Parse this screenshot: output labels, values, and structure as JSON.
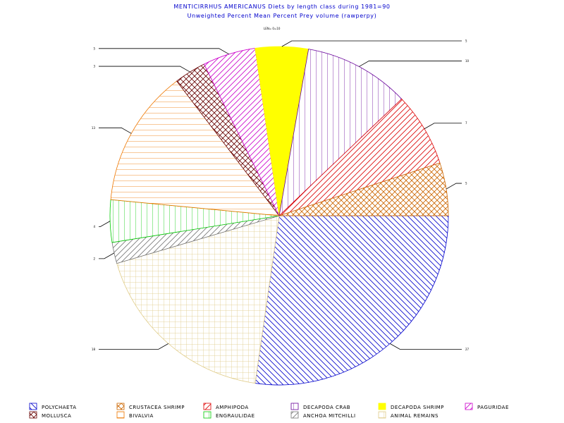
{
  "chart_data": {
    "type": "pie",
    "title": "MENTICIRRHUS AMERICANUS Diets by length class during 1981=90",
    "subtitle": "Unweighted Percent Mean Percent Prey  volume (rawperpy)",
    "group_label": "LEN=  0=10",
    "colors": {
      "polychaeta": "#0000cc",
      "crustacea_shrimp": "#cc6600",
      "amphipoda": "#dd0000",
      "decapoda_crab": "#660099",
      "decapoda_shrimp": "#ffff00",
      "paguridae": "#cc00cc",
      "mollusca": "#660000",
      "bivalvia": "#ee7700",
      "engraulidae": "#00cc00",
      "anchoa_mitchilli": "#777777",
      "animal_remains": "#e0cc88"
    },
    "slices": [
      {
        "name": "POLYCHAETA",
        "value": 27,
        "label": "27",
        "color": "#0000cc",
        "pattern": "diag-back"
      },
      {
        "name": "ANIMAL REMAINS",
        "value": 18,
        "label": "18",
        "color": "#e0cc88",
        "pattern": "grid"
      },
      {
        "name": "ANCHOA MITCHILLI",
        "value": 2,
        "label": "2",
        "color": "#777777",
        "pattern": "diag-fwd"
      },
      {
        "name": "ENGRAULIDAE",
        "value": 4,
        "label": "4",
        "color": "#00cc00",
        "pattern": "vert"
      },
      {
        "name": "BIVALVIA",
        "value": 13,
        "label": "13",
        "color": "#ee7700",
        "pattern": "horiz"
      },
      {
        "name": "MOLLUSCA",
        "value": 3,
        "label": "3",
        "color": "#660000",
        "pattern": "cross"
      },
      {
        "name": "PAGURIDAE",
        "value": 5,
        "label": "5",
        "color": "#cc00cc",
        "pattern": "diag-fwd"
      },
      {
        "name": "DECAPODA SHRIMP",
        "value": 5,
        "label": "5",
        "color": "#ffff00",
        "pattern": "solid"
      },
      {
        "name": "DECAPODA CRAB",
        "value": 10,
        "label": "10",
        "color": "#660099",
        "pattern": "vert"
      },
      {
        "name": "AMPHIPODA",
        "value": 7,
        "label": "7",
        "color": "#dd0000",
        "pattern": "diag-fwd"
      },
      {
        "name": "CRUSTACEA SHRIMP",
        "value": 5,
        "label": "5",
        "color": "#cc6600",
        "pattern": "cross"
      }
    ],
    "legend": [
      {
        "label": "POLYCHAETA",
        "color": "#0000cc",
        "pattern": "diag-back"
      },
      {
        "label": "CRUSTACEA SHRIMP",
        "color": "#cc6600",
        "pattern": "cross"
      },
      {
        "label": "AMPHIPODA",
        "color": "#dd0000",
        "pattern": "diag-fwd"
      },
      {
        "label": "DECAPODA CRAB",
        "color": "#660099",
        "pattern": "vert"
      },
      {
        "label": "DECAPODA SHRIMP",
        "color": "#ffff00",
        "pattern": "solid"
      },
      {
        "label": "PAGURIDAE",
        "color": "#cc00cc",
        "pattern": "diag-fwd"
      },
      {
        "label": "MOLLUSCA",
        "color": "#660000",
        "pattern": "cross"
      },
      {
        "label": "BIVALVIA",
        "color": "#ee7700",
        "pattern": "horiz"
      },
      {
        "label": "ENGRAULIDAE",
        "color": "#00cc00",
        "pattern": "vert"
      },
      {
        "label": "ANCHOA MITCHILLI",
        "color": "#777777",
        "pattern": "diag-fwd"
      },
      {
        "label": "ANIMAL REMAINS",
        "color": "#e0cc88",
        "pattern": "grid"
      }
    ]
  }
}
